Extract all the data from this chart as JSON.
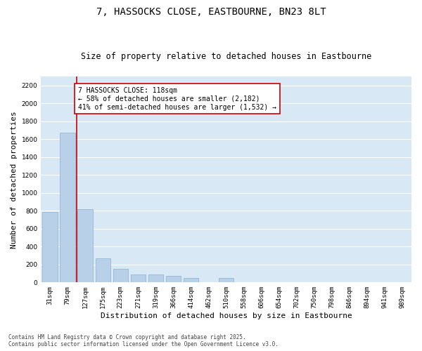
{
  "title_line1": "7, HASSOCKS CLOSE, EASTBOURNE, BN23 8LT",
  "title_line2": "Size of property relative to detached houses in Eastbourne",
  "xlabel": "Distribution of detached houses by size in Eastbourne",
  "ylabel": "Number of detached properties",
  "categories": [
    "31sqm",
    "79sqm",
    "127sqm",
    "175sqm",
    "223sqm",
    "271sqm",
    "319sqm",
    "366sqm",
    "414sqm",
    "462sqm",
    "510sqm",
    "558sqm",
    "606sqm",
    "654sqm",
    "702sqm",
    "750sqm",
    "798sqm",
    "846sqm",
    "894sqm",
    "941sqm",
    "989sqm"
  ],
  "values": [
    790,
    1670,
    820,
    270,
    150,
    90,
    90,
    70,
    50,
    0,
    50,
    0,
    0,
    0,
    0,
    0,
    0,
    0,
    0,
    0,
    0
  ],
  "bar_color": "#b8d0e8",
  "bar_edge_color": "#8ab0d0",
  "background_color": "#d8e8f4",
  "grid_color": "#ffffff",
  "vline_color": "#cc0000",
  "annotation_text": "7 HASSOCKS CLOSE: 118sqm\n← 58% of detached houses are smaller (2,182)\n41% of semi-detached houses are larger (1,532) →",
  "annotation_box_color": "#cc0000",
  "ylim": [
    0,
    2300
  ],
  "yticks": [
    0,
    200,
    400,
    600,
    800,
    1000,
    1200,
    1400,
    1600,
    1800,
    2000,
    2200
  ],
  "footer_line1": "Contains HM Land Registry data © Crown copyright and database right 2025.",
  "footer_line2": "Contains public sector information licensed under the Open Government Licence v3.0.",
  "title_fontsize": 10,
  "subtitle_fontsize": 8.5,
  "annotation_fontsize": 7,
  "tick_fontsize": 6.5,
  "label_fontsize": 8,
  "footer_fontsize": 5.5
}
